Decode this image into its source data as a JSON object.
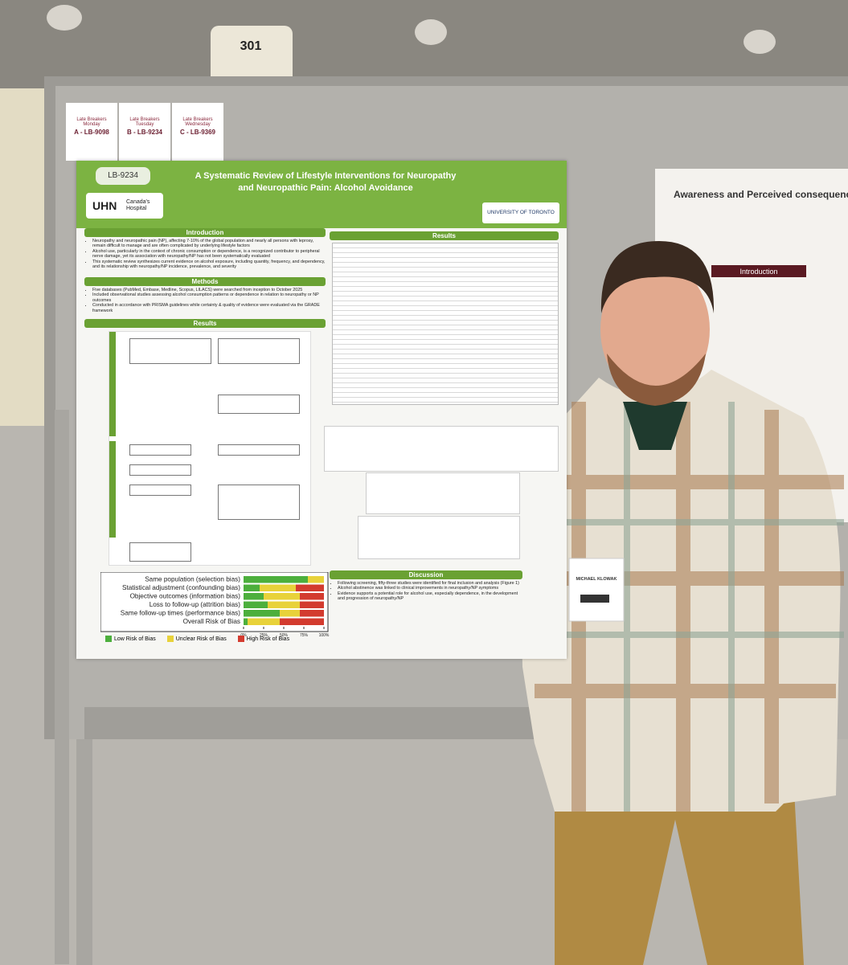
{
  "room_sign": "301",
  "late_breakers": [
    {
      "label": "Late Breakers",
      "day": "Monday",
      "code": "A - LB-9098"
    },
    {
      "label": "Late Breakers",
      "day": "Tuesday",
      "code": "B - LB-9234"
    },
    {
      "label": "Late Breakers",
      "day": "Wednesday",
      "code": "C - LB-9369"
    }
  ],
  "poster": {
    "id": "LB-9234",
    "title_lines": [
      "A Systematic Review of Lifestyle Interventions for Neuropathy",
      "and Neuropathic Pain: Alcohol Avoidance"
    ],
    "hospital": "UHN",
    "hospital_sub": "Canada's Hospital",
    "university": "UNIVERSITY OF TORONTO",
    "introduction": {
      "heading": "Introduction",
      "bullets": [
        "Neuropathy and neuropathic pain (NP), affecting 7-10% of the global population and nearly all persons with leprosy, remain difficult to manage and are often complicated by underlying lifestyle factors",
        "Alcohol use, particularly in the context of chronic consumption or dependence, is a recognized contributor to peripheral nerve damage, yet its association with neuropathy/NP has not been systematically evaluated",
        "This systematic review synthesizes current evidence on alcohol exposure, including quantity, frequency, and dependency, and its relationship with neuropathy/NP incidence, prevalence, and severity"
      ]
    },
    "methods": {
      "heading": "Methods",
      "bullets": [
        "Five databases (PubMed, Embase, Medline, Scopus, LILACS) were searched from inception to October 2025",
        "Included observational studies assessing alcohol consumption patterns or dependence in relation to neuropathy or NP outcomes",
        "Conducted in accordance with PRISMA guidelines while certainty & quality of evidence were evaluated via the GRADE framework"
      ]
    },
    "results_left": "Results",
    "results_right": "Results",
    "discussion": {
      "heading": "Discussion",
      "bullets": [
        "Following screening, fifty-three studies were identified for final inclusion and analysis (Figure 1)",
        "Alcohol abstinence was linked to clinical improvements in neuropathy/NP symptoms",
        "Evidence supports a potential role for alcohol use, especially dependence, in the development and progression of neuropathy/NP"
      ]
    }
  },
  "chart_data": {
    "type": "bar",
    "orientation": "horizontal",
    "stacked": true,
    "categories": [
      "Same population (selection bias)",
      "Statistical adjustment (confounding bias)",
      "Objective outcomes (information bias)",
      "Loss to follow-up (attrition bias)",
      "Same follow-up times (performance bias)",
      "Overall Risk of Bias"
    ],
    "series": [
      {
        "name": "Low Risk of Bias",
        "color": "#4caf3c",
        "values": [
          80,
          20,
          25,
          30,
          45,
          5
        ]
      },
      {
        "name": "Unclear Risk of Bias",
        "color": "#e8d23a",
        "values": [
          20,
          45,
          45,
          40,
          25,
          40
        ]
      },
      {
        "name": "High Risk of Bias",
        "color": "#d33b2f",
        "values": [
          0,
          35,
          30,
          30,
          30,
          55
        ]
      }
    ],
    "xlim": [
      0,
      100
    ],
    "xticks": [
      {
        "value": 0,
        "label": "0%"
      },
      {
        "value": 25,
        "label": "25%"
      },
      {
        "value": 50,
        "label": "50%"
      },
      {
        "value": 75,
        "label": "75%"
      },
      {
        "value": 100,
        "label": "100%"
      }
    ]
  },
  "neighbor_poster": {
    "title": "Awareness and Perceived consequence",
    "heading": "Introduction"
  },
  "badge": {
    "name": "MICHAEL KLOWAK"
  }
}
